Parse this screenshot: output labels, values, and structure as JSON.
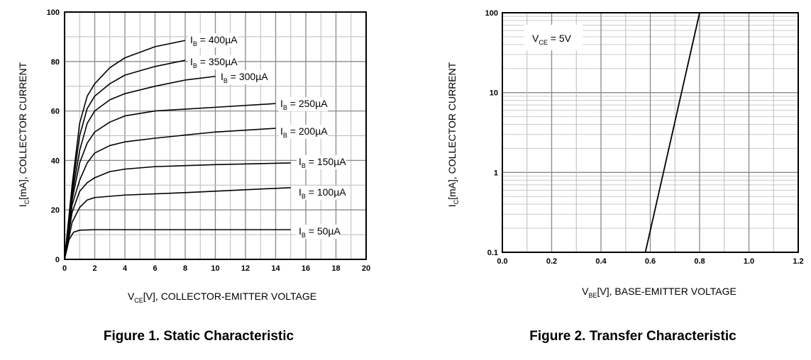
{
  "chart_data": [
    {
      "type": "line",
      "caption": "Figure 1. Static Characteristic",
      "xlabel": {
        "main": "V",
        "sub": "CE",
        "rest": "[V], COLLECTOR-EMITTER VOLTAGE"
      },
      "ylabel": {
        "main": "I",
        "sub": "C",
        "rest": "[mA], COLLECTOR CURRENT"
      },
      "xlim": [
        0,
        20
      ],
      "ylim": [
        0,
        100
      ],
      "xticks": [
        "0",
        "2",
        "4",
        "6",
        "8",
        "10",
        "12",
        "14",
        "16",
        "18",
        "20"
      ],
      "yticks": [
        "0",
        "20",
        "40",
        "60",
        "80",
        "100"
      ],
      "grid": true,
      "series": [
        {
          "name": "= 400µA",
          "label_prefix": "I",
          "label_sub": "B",
          "points": [
            [
              0,
              0
            ],
            [
              0.5,
              30
            ],
            [
              1,
              55
            ],
            [
              1.5,
              66
            ],
            [
              2,
              71
            ],
            [
              3,
              77.5
            ],
            [
              4,
              81.5
            ],
            [
              6,
              86
            ],
            [
              8,
              88.5
            ]
          ]
        },
        {
          "name": "= 350µA",
          "label_prefix": "I",
          "label_sub": "B",
          "points": [
            [
              0,
              0
            ],
            [
              0.5,
              28
            ],
            [
              1,
              50
            ],
            [
              1.5,
              61
            ],
            [
              2,
              66
            ],
            [
              3,
              71
            ],
            [
              4,
              74.5
            ],
            [
              6,
              78
            ],
            [
              8,
              80.5
            ]
          ]
        },
        {
          "name": "= 300µA",
          "label_prefix": "I",
          "label_sub": "B",
          "points": [
            [
              0,
              0
            ],
            [
              0.5,
              26
            ],
            [
              1,
              44
            ],
            [
              1.5,
              55
            ],
            [
              2,
              60
            ],
            [
              3,
              64.5
            ],
            [
              4,
              67
            ],
            [
              6,
              70
            ],
            [
              8,
              72.5
            ],
            [
              10,
              74
            ]
          ]
        },
        {
          "name": "= 250µA",
          "label_prefix": "I",
          "label_sub": "B",
          "points": [
            [
              0,
              0
            ],
            [
              0.5,
              24
            ],
            [
              1,
              39
            ],
            [
              1.5,
              47
            ],
            [
              2,
              51.5
            ],
            [
              3,
              55.5
            ],
            [
              4,
              58
            ],
            [
              6,
              60
            ],
            [
              10,
              61.5
            ],
            [
              14,
              63
            ]
          ]
        },
        {
          "name": "= 200µA",
          "label_prefix": "I",
          "label_sub": "B",
          "points": [
            [
              0,
              0
            ],
            [
              0.5,
              22
            ],
            [
              1,
              32
            ],
            [
              1.5,
              39
            ],
            [
              2,
              43
            ],
            [
              3,
              46
            ],
            [
              4,
              47.5
            ],
            [
              6,
              49
            ],
            [
              10,
              51.5
            ],
            [
              14,
              53
            ]
          ]
        },
        {
          "name": "= 150µA",
          "label_prefix": "I",
          "label_sub": "B",
          "points": [
            [
              0,
              0
            ],
            [
              0.5,
              19
            ],
            [
              1,
              27.5
            ],
            [
              1.5,
              31
            ],
            [
              2,
              33
            ],
            [
              3,
              35.5
            ],
            [
              4,
              36.5
            ],
            [
              6,
              37.5
            ],
            [
              10,
              38.3
            ],
            [
              15,
              39
            ]
          ]
        },
        {
          "name": "= 100µA",
          "label_prefix": "I",
          "label_sub": "B",
          "points": [
            [
              0,
              0
            ],
            [
              0.5,
              15
            ],
            [
              1,
              21
            ],
            [
              1.5,
              24
            ],
            [
              2,
              25
            ],
            [
              4,
              26
            ],
            [
              8,
              27
            ],
            [
              15,
              29
            ]
          ]
        },
        {
          "name": "= 50µA",
          "label_prefix": "I",
          "label_sub": "B",
          "points": [
            [
              0,
              0
            ],
            [
              0.3,
              8
            ],
            [
              0.6,
              11
            ],
            [
              1,
              11.8
            ],
            [
              2,
              12
            ],
            [
              15,
              12
            ]
          ]
        }
      ]
    },
    {
      "type": "line",
      "caption": "Figure 2. Transfer Characteristic",
      "xlabel": {
        "main": "V",
        "sub": "BE",
        "rest": "[V], BASE-EMITTER VOLTAGE"
      },
      "ylabel": {
        "main": "I",
        "sub": "C",
        "rest": "[mA], COLLECTOR CURRENT"
      },
      "xlim": [
        0,
        1.2
      ],
      "ylim": [
        0.1,
        100
      ],
      "yscale": "log",
      "xticks": [
        "0.0",
        "0.2",
        "0.4",
        "0.6",
        "0.8",
        "1.0",
        "1.2"
      ],
      "yticks": [
        "0.1",
        "1",
        "10",
        "100"
      ],
      "grid": true,
      "annotation": {
        "main": "V",
        "sub": "CE",
        "rest": " = 5V"
      },
      "series": [
        {
          "points": [
            [
              0.58,
              0.1
            ],
            [
              0.8,
              100
            ]
          ]
        }
      ]
    }
  ]
}
